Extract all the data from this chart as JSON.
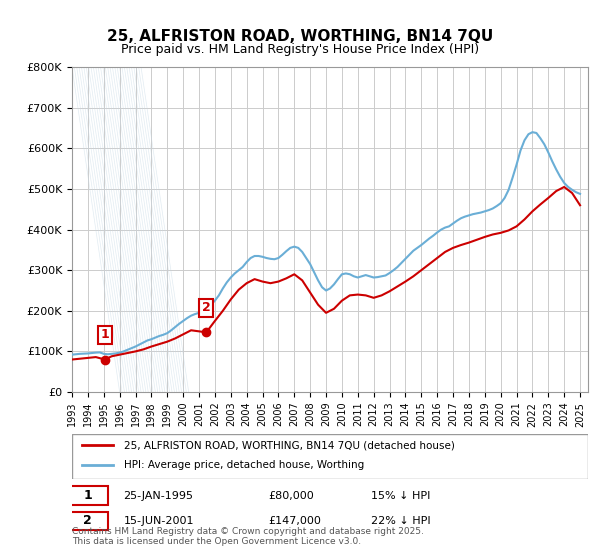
{
  "title": "25, ALFRISTON ROAD, WORTHING, BN14 7QU",
  "subtitle": "Price paid vs. HM Land Registry's House Price Index (HPI)",
  "ylabel_ticks": [
    "£0",
    "£100K",
    "£200K",
    "£300K",
    "£400K",
    "£500K",
    "£600K",
    "£700K",
    "£800K"
  ],
  "ylim": [
    0,
    800000
  ],
  "xlim_start": 1993.0,
  "xlim_end": 2025.5,
  "xlabel_years": [
    1993,
    1994,
    1995,
    1996,
    1997,
    1998,
    1999,
    2000,
    2001,
    2002,
    2003,
    2004,
    2005,
    2006,
    2007,
    2008,
    2009,
    2010,
    2011,
    2012,
    2013,
    2014,
    2015,
    2016,
    2017,
    2018,
    2019,
    2020,
    2021,
    2022,
    2023,
    2024,
    2025
  ],
  "hpi_x": [
    1993.0,
    1993.25,
    1993.5,
    1993.75,
    1994.0,
    1994.25,
    1994.5,
    1994.75,
    1995.0,
    1995.25,
    1995.5,
    1995.75,
    1996.0,
    1996.25,
    1996.5,
    1996.75,
    1997.0,
    1997.25,
    1997.5,
    1997.75,
    1998.0,
    1998.25,
    1998.5,
    1998.75,
    1999.0,
    1999.25,
    1999.5,
    1999.75,
    2000.0,
    2000.25,
    2000.5,
    2000.75,
    2001.0,
    2001.25,
    2001.5,
    2001.75,
    2002.0,
    2002.25,
    2002.5,
    2002.75,
    2003.0,
    2003.25,
    2003.5,
    2003.75,
    2004.0,
    2004.25,
    2004.5,
    2004.75,
    2005.0,
    2005.25,
    2005.5,
    2005.75,
    2006.0,
    2006.25,
    2006.5,
    2006.75,
    2007.0,
    2007.25,
    2007.5,
    2007.75,
    2008.0,
    2008.25,
    2008.5,
    2008.75,
    2009.0,
    2009.25,
    2009.5,
    2009.75,
    2010.0,
    2010.25,
    2010.5,
    2010.75,
    2011.0,
    2011.25,
    2011.5,
    2011.75,
    2012.0,
    2012.25,
    2012.5,
    2012.75,
    2013.0,
    2013.25,
    2013.5,
    2013.75,
    2014.0,
    2014.25,
    2014.5,
    2014.75,
    2015.0,
    2015.25,
    2015.5,
    2015.75,
    2016.0,
    2016.25,
    2016.5,
    2016.75,
    2017.0,
    2017.25,
    2017.5,
    2017.75,
    2018.0,
    2018.25,
    2018.5,
    2018.75,
    2019.0,
    2019.25,
    2019.5,
    2019.75,
    2020.0,
    2020.25,
    2020.5,
    2020.75,
    2021.0,
    2021.25,
    2021.5,
    2021.75,
    2022.0,
    2022.25,
    2022.5,
    2022.75,
    2023.0,
    2023.25,
    2023.5,
    2023.75,
    2024.0,
    2024.25,
    2024.5,
    2024.75,
    2025.0
  ],
  "hpi_y": [
    92000,
    93000,
    94000,
    94500,
    95000,
    96000,
    97000,
    97500,
    94000,
    93000,
    94000,
    95000,
    97000,
    100000,
    104000,
    108000,
    112000,
    117000,
    122000,
    127000,
    130000,
    134000,
    138000,
    141000,
    145000,
    152000,
    160000,
    168000,
    175000,
    182000,
    188000,
    192000,
    195000,
    200000,
    208000,
    215000,
    225000,
    238000,
    255000,
    270000,
    282000,
    292000,
    300000,
    308000,
    320000,
    330000,
    335000,
    335000,
    333000,
    330000,
    328000,
    327000,
    330000,
    338000,
    347000,
    355000,
    358000,
    355000,
    345000,
    330000,
    315000,
    295000,
    275000,
    258000,
    250000,
    255000,
    265000,
    278000,
    290000,
    292000,
    290000,
    285000,
    282000,
    285000,
    288000,
    285000,
    282000,
    283000,
    285000,
    287000,
    293000,
    300000,
    308000,
    318000,
    328000,
    338000,
    348000,
    355000,
    362000,
    370000,
    378000,
    385000,
    393000,
    400000,
    405000,
    408000,
    415000,
    422000,
    428000,
    432000,
    435000,
    438000,
    440000,
    442000,
    445000,
    448000,
    452000,
    458000,
    465000,
    478000,
    498000,
    528000,
    560000,
    595000,
    620000,
    635000,
    640000,
    638000,
    625000,
    610000,
    590000,
    568000,
    548000,
    530000,
    515000,
    505000,
    498000,
    492000,
    488000
  ],
  "price_x": [
    1993.0,
    1993.5,
    1994.0,
    1994.5,
    1995.07,
    1995.5,
    1996.0,
    1996.5,
    1997.0,
    1997.5,
    1998.0,
    1998.5,
    1999.0,
    1999.5,
    2000.0,
    2000.5,
    2001.46,
    2002.0,
    2002.5,
    2003.0,
    2003.5,
    2004.0,
    2004.5,
    2005.0,
    2005.5,
    2006.0,
    2006.5,
    2007.0,
    2007.5,
    2008.0,
    2008.5,
    2009.0,
    2009.5,
    2010.0,
    2010.5,
    2011.0,
    2011.5,
    2012.0,
    2012.5,
    2013.0,
    2013.5,
    2014.0,
    2014.5,
    2015.0,
    2015.5,
    2016.0,
    2016.5,
    2017.0,
    2017.5,
    2018.0,
    2018.5,
    2019.0,
    2019.5,
    2020.0,
    2020.5,
    2021.0,
    2021.5,
    2022.0,
    2022.5,
    2023.0,
    2023.5,
    2024.0,
    2024.5,
    2025.0
  ],
  "price_y": [
    80000,
    82000,
    84000,
    86000,
    80000,
    88000,
    92000,
    96000,
    100000,
    105000,
    112000,
    118000,
    124000,
    132000,
    142000,
    152000,
    147000,
    175000,
    200000,
    228000,
    252000,
    268000,
    278000,
    272000,
    268000,
    272000,
    280000,
    290000,
    275000,
    245000,
    215000,
    195000,
    205000,
    225000,
    238000,
    240000,
    238000,
    232000,
    238000,
    248000,
    260000,
    272000,
    285000,
    300000,
    315000,
    330000,
    345000,
    355000,
    362000,
    368000,
    375000,
    382000,
    388000,
    392000,
    398000,
    408000,
    425000,
    445000,
    462000,
    478000,
    495000,
    505000,
    490000,
    460000
  ],
  "point1_x": 1995.07,
  "point1_y": 80000,
  "point1_label": "1",
  "point1_date": "25-JAN-1995",
  "point1_price": "£80,000",
  "point1_hpi": "15% ↓ HPI",
  "point2_x": 2001.46,
  "point2_y": 147000,
  "point2_label": "2",
  "point2_date": "15-JUN-2001",
  "point2_price": "£147,000",
  "point2_hpi": "22% ↓ HPI",
  "hpi_color": "#6aaed6",
  "price_color": "#cc0000",
  "marker_box_color": "#cc0000",
  "background_color": "#ffffff",
  "hatch_color": "#c8d8e8",
  "legend_label_price": "25, ALFRISTON ROAD, WORTHING, BN14 7QU (detached house)",
  "legend_label_hpi": "HPI: Average price, detached house, Worthing",
  "footer": "Contains HM Land Registry data © Crown copyright and database right 2025.\nThis data is licensed under the Open Government Licence v3.0.",
  "grid_color": "#cccccc"
}
